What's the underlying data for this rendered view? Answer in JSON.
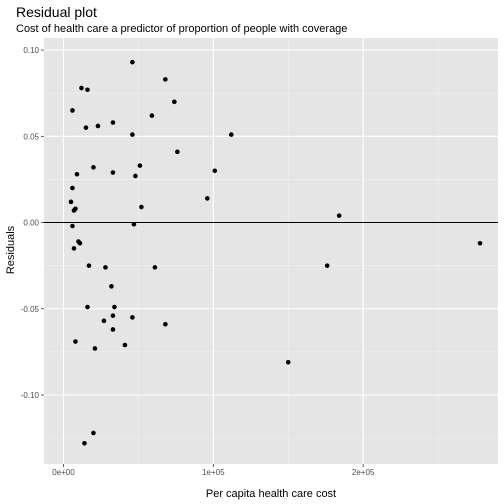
{
  "chart_data": {
    "type": "scatter",
    "title": "Residual plot",
    "subtitle": "Cost of health care a predictor of proportion of people with coverage",
    "xlabel": "Per capita health care cost",
    "ylabel": "Residuals",
    "xlim": [
      -13000,
      290000
    ],
    "ylim": [
      -0.14,
      0.107
    ],
    "x_ticks": [
      0,
      100000,
      200000
    ],
    "x_tick_labels": [
      "0e+00",
      "1e+05",
      "2e+05"
    ],
    "y_ticks": [
      -0.1,
      -0.05,
      0,
      0.05,
      0.1
    ],
    "y_tick_labels": [
      "-0.10",
      "-0.05",
      "0.00",
      "0.05",
      "0.10"
    ],
    "reference_line": {
      "y": 0
    },
    "grid": true,
    "background": "#e5e5e5",
    "point_color": "#000000",
    "points": [
      {
        "x": 46000,
        "y": 0.093
      },
      {
        "x": 68000,
        "y": 0.083
      },
      {
        "x": 12000,
        "y": 0.078
      },
      {
        "x": 16000,
        "y": 0.077
      },
      {
        "x": 74000,
        "y": 0.07
      },
      {
        "x": 6000,
        "y": 0.065
      },
      {
        "x": 59000,
        "y": 0.062
      },
      {
        "x": 33000,
        "y": 0.058
      },
      {
        "x": 15000,
        "y": 0.055
      },
      {
        "x": 23000,
        "y": 0.056
      },
      {
        "x": 46000,
        "y": 0.051
      },
      {
        "x": 112000,
        "y": 0.051
      },
      {
        "x": 76000,
        "y": 0.041
      },
      {
        "x": 51000,
        "y": 0.033
      },
      {
        "x": 20000,
        "y": 0.032
      },
      {
        "x": 101000,
        "y": 0.03
      },
      {
        "x": 33000,
        "y": 0.029
      },
      {
        "x": 9000,
        "y": 0.028
      },
      {
        "x": 48000,
        "y": 0.027
      },
      {
        "x": 6000,
        "y": 0.02
      },
      {
        "x": 96000,
        "y": 0.014
      },
      {
        "x": 5000,
        "y": 0.012
      },
      {
        "x": 52000,
        "y": 0.009
      },
      {
        "x": 8000,
        "y": 0.008
      },
      {
        "x": 7000,
        "y": 0.007
      },
      {
        "x": 184000,
        "y": 0.004
      },
      {
        "x": 47000,
        "y": -0.001
      },
      {
        "x": 6000,
        "y": -0.002
      },
      {
        "x": 10000,
        "y": -0.011
      },
      {
        "x": 11000,
        "y": -0.012
      },
      {
        "x": 278000,
        "y": -0.012
      },
      {
        "x": 7000,
        "y": -0.015
      },
      {
        "x": 17000,
        "y": -0.025
      },
      {
        "x": 176000,
        "y": -0.025
      },
      {
        "x": 28000,
        "y": -0.026
      },
      {
        "x": 61000,
        "y": -0.026
      },
      {
        "x": 32000,
        "y": -0.037
      },
      {
        "x": 16000,
        "y": -0.049
      },
      {
        "x": 34000,
        "y": -0.049
      },
      {
        "x": 33000,
        "y": -0.054
      },
      {
        "x": 46000,
        "y": -0.055
      },
      {
        "x": 27000,
        "y": -0.057
      },
      {
        "x": 68000,
        "y": -0.059
      },
      {
        "x": 33000,
        "y": -0.062
      },
      {
        "x": 8000,
        "y": -0.069
      },
      {
        "x": 41000,
        "y": -0.071
      },
      {
        "x": 21000,
        "y": -0.073
      },
      {
        "x": 150000,
        "y": -0.081
      },
      {
        "x": 20000,
        "y": -0.122
      },
      {
        "x": 14000,
        "y": -0.128
      }
    ]
  }
}
